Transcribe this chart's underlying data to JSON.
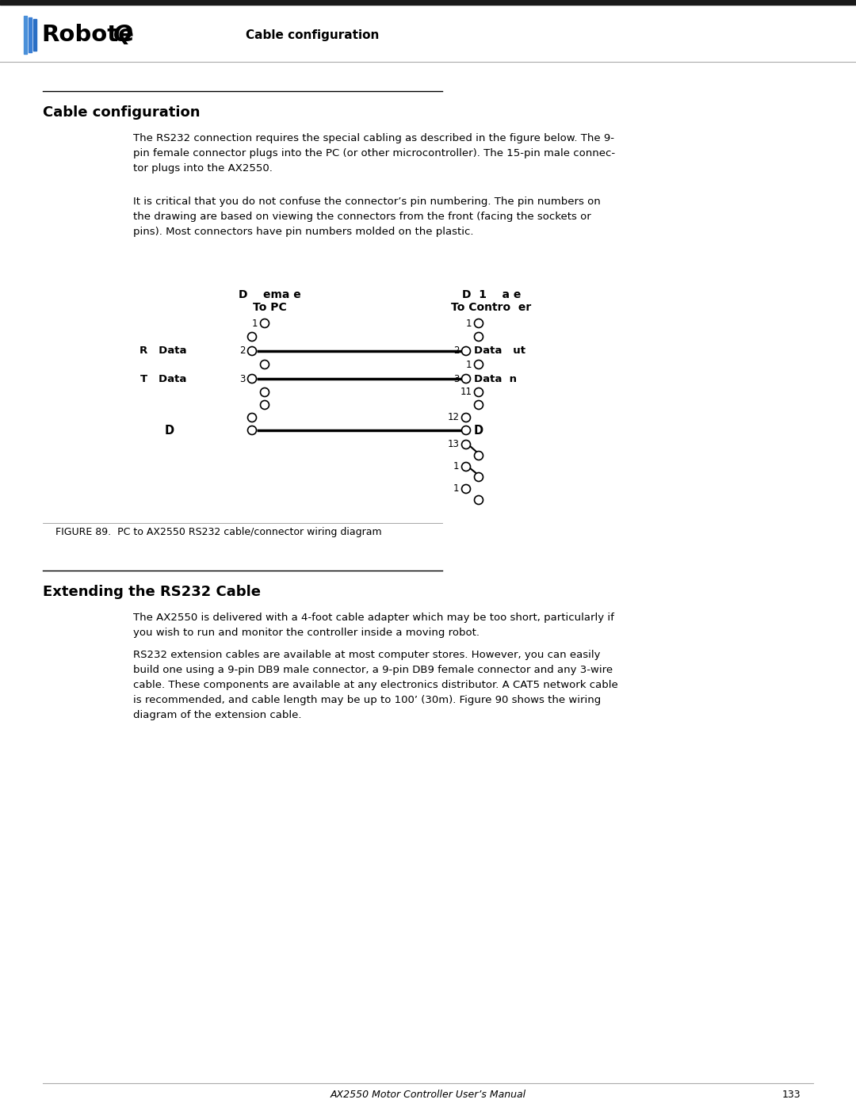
{
  "header_title": "Cable configuration",
  "section1_title": "Cable configuration",
  "section1_para1": "The RS232 connection requires the special cabling as described in the figure below. The 9-\npin female connector plugs into the PC (or other microcontroller). The 15-pin male connec-\ntor plugs into the AX2550.",
  "section1_para2": "It is critical that you do not confuse the connector’s pin numbering. The pin numbers on\nthe drawing are based on viewing the connectors from the front (facing the sockets or\npins). Most connectors have pin numbers molded on the plastic.",
  "db9_label1": "D    ema e",
  "db9_label2": "To PC",
  "db15_label1": "D  1    a e",
  "db15_label2": "To Contro  er",
  "figure_caption": "FIGURE 89.  PC to AX2550 RS232 cable/connector wiring diagram",
  "section2_title": "Extending the RS232 Cable",
  "section2_para1": "The AX2550 is delivered with a 4-foot cable adapter which may be too short, particularly if\nyou wish to run and monitor the controller inside a moving robot.",
  "section2_para2": "RS232 extension cables are available at most computer stores. However, you can easily\nbuild one using a 9-pin DB9 male connector, a 9-pin DB9 female connector and any 3-wire\ncable. These components are available at any electronics distributor. A CAT5 network cable\nis recommended, and cable length may be up to 100’ (30m). Figure 90 shows the wiring\ndiagram of the extension cable.",
  "footer_text": "AX2550 Motor Controller User’s Manual",
  "footer_page": "133",
  "bg_color": "#ffffff",
  "logo_blue": "#3a7fd5",
  "logo_black": "#000000",
  "header_bg": "#000000"
}
